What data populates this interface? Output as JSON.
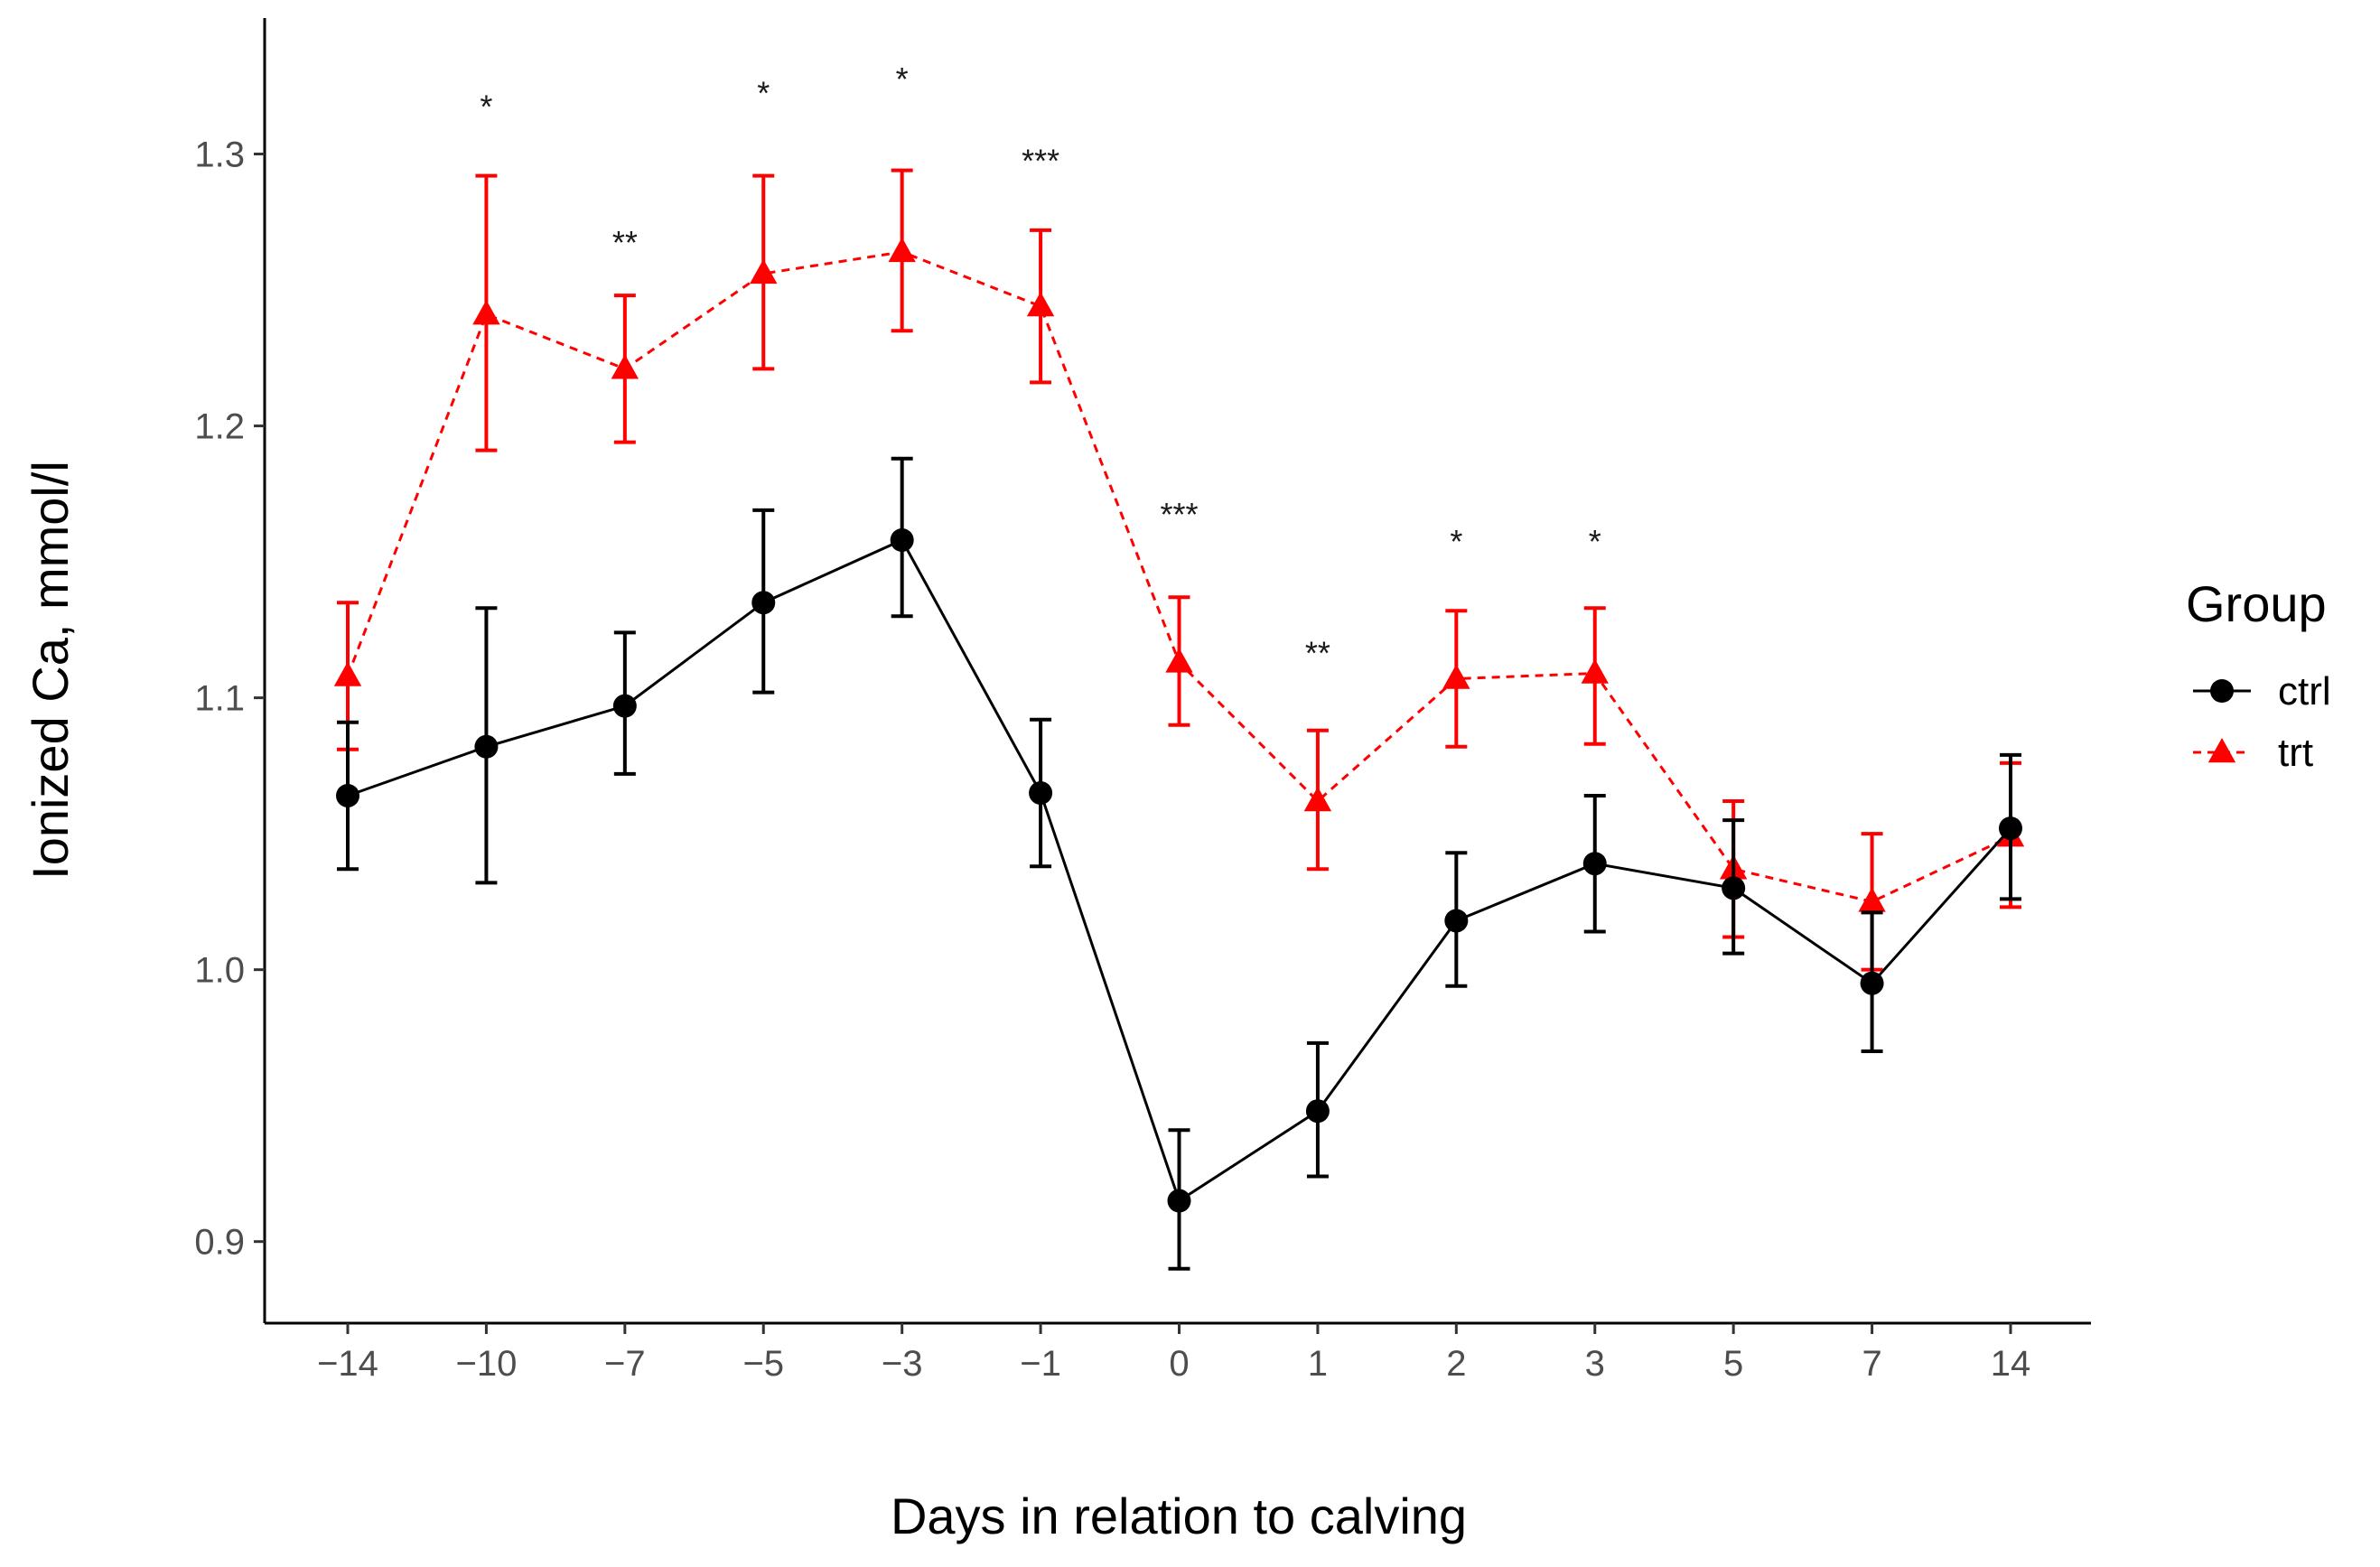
{
  "chart_data": {
    "type": "line",
    "title": "",
    "xlabel": "Days in relation to calving",
    "ylabel": "Ionized Ca, mmol/l",
    "categories": [
      "−14",
      "−10",
      "−7",
      "−5",
      "−3",
      "−1",
      "0",
      "1",
      "2",
      "3",
      "5",
      "7",
      "14"
    ],
    "y_ticks": [
      "0.9",
      "1.0",
      "1.1",
      "1.2",
      "1.3"
    ],
    "ylim": [
      0.87,
      1.35
    ],
    "grid": false,
    "legend": {
      "title": "Group",
      "position": "right"
    },
    "series": [
      {
        "name": "ctrl",
        "color": "#000000",
        "marker": "circle",
        "line_style": "solid",
        "values": [
          1.064,
          1.082,
          1.097,
          1.135,
          1.158,
          1.065,
          0.915,
          0.948,
          1.018,
          1.039,
          1.03,
          0.995,
          1.052
        ],
        "error_low": [
          1.037,
          1.032,
          1.072,
          1.102,
          1.13,
          1.038,
          0.89,
          0.924,
          0.994,
          1.014,
          1.006,
          0.97,
          1.026
        ],
        "error_high": [
          1.091,
          1.133,
          1.124,
          1.169,
          1.188,
          1.092,
          0.941,
          0.973,
          1.043,
          1.064,
          1.055,
          1.021,
          1.079
        ]
      },
      {
        "name": "trt",
        "color": "#ff0000",
        "marker": "triangle",
        "line_style": "dashed",
        "values": [
          1.108,
          1.241,
          1.221,
          1.256,
          1.264,
          1.244,
          1.113,
          1.062,
          1.107,
          1.109,
          1.037,
          1.025,
          1.049
        ],
        "error_low": [
          1.081,
          1.191,
          1.194,
          1.221,
          1.235,
          1.216,
          1.09,
          1.037,
          1.082,
          1.083,
          1.012,
          1.0,
          1.023
        ],
        "error_high": [
          1.135,
          1.292,
          1.248,
          1.292,
          1.294,
          1.272,
          1.137,
          1.088,
          1.132,
          1.133,
          1.062,
          1.05,
          1.076
        ]
      }
    ],
    "annotations": [
      {
        "category_index": 1,
        "text": "*",
        "y": 1.318
      },
      {
        "category_index": 2,
        "text": "**",
        "y": 1.268
      },
      {
        "category_index": 3,
        "text": "*",
        "y": 1.323
      },
      {
        "category_index": 4,
        "text": "*",
        "y": 1.328
      },
      {
        "category_index": 5,
        "text": "***",
        "y": 1.298
      },
      {
        "category_index": 6,
        "text": "***",
        "y": 1.168
      },
      {
        "category_index": 7,
        "text": "**",
        "y": 1.117
      },
      {
        "category_index": 8,
        "text": "*",
        "y": 1.158
      },
      {
        "category_index": 9,
        "text": "*",
        "y": 1.158
      }
    ]
  }
}
